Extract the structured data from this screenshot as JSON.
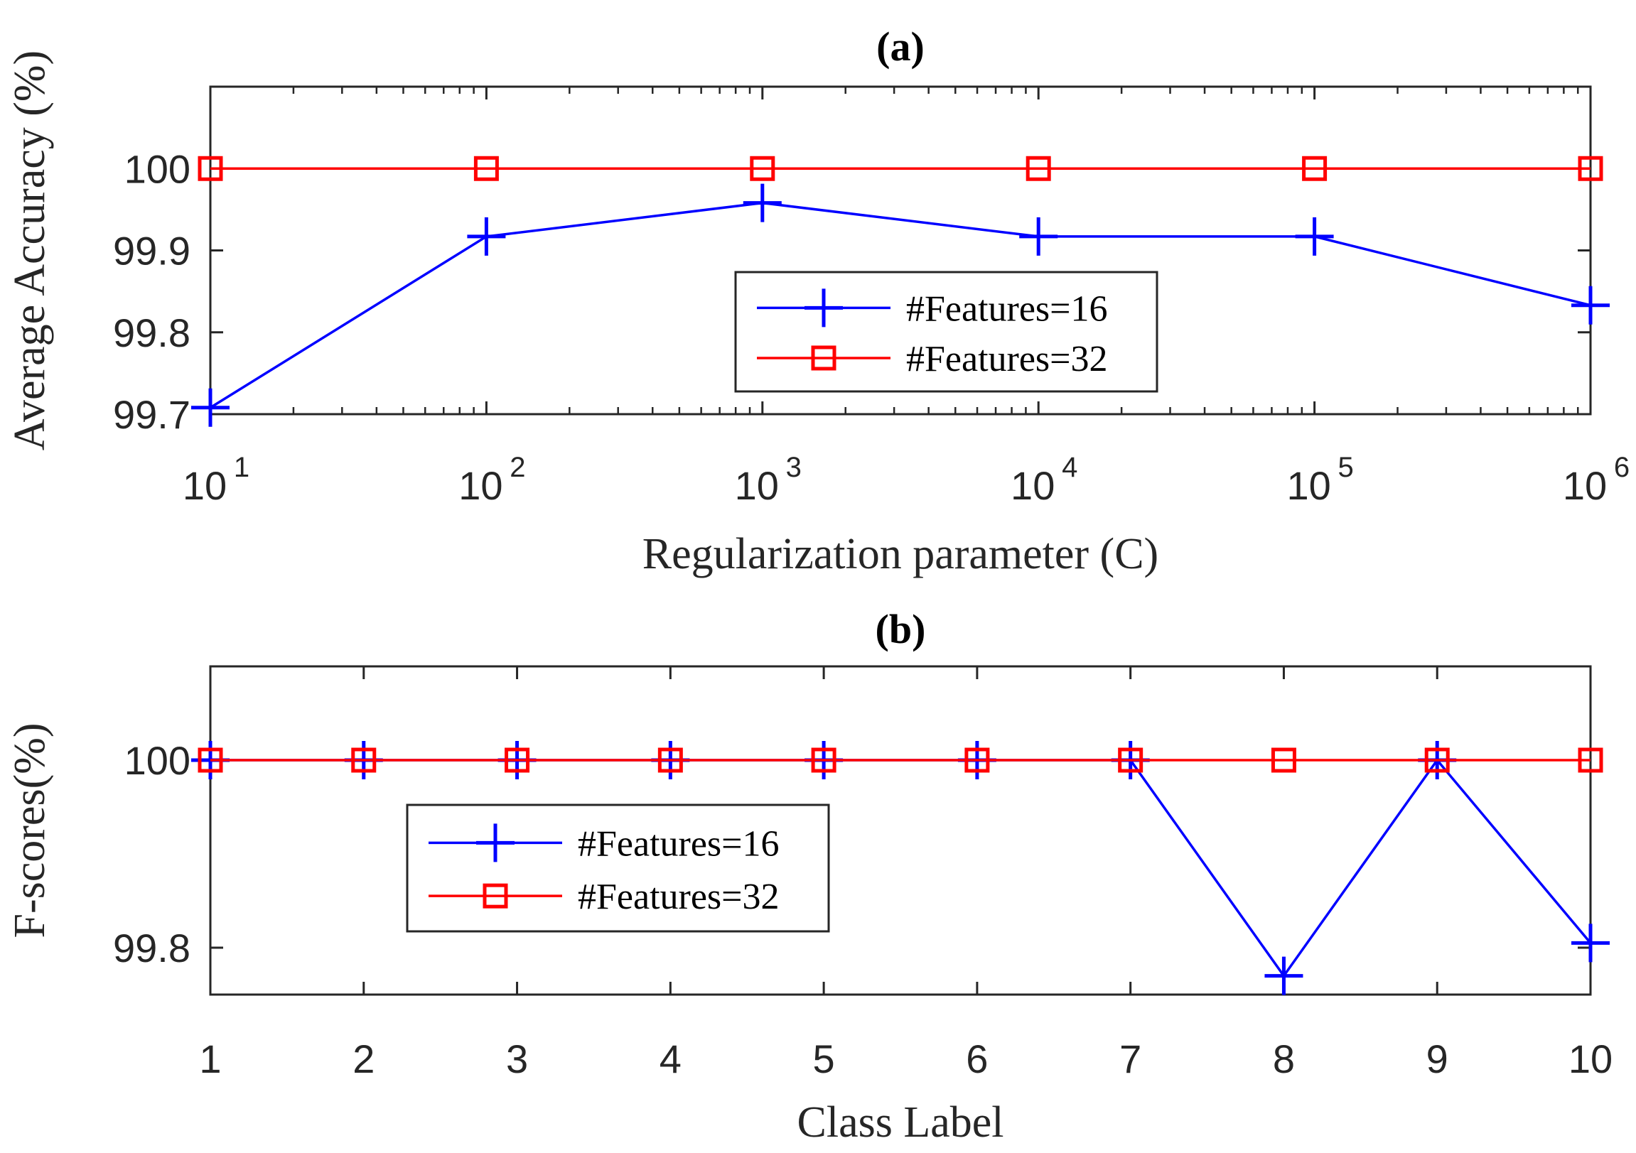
{
  "chart_data": [
    {
      "type": "line",
      "title": "(a)",
      "xlabel": "Regularization parameter (C)",
      "ylabel": "Average Accuracy (%)",
      "xscale": "log",
      "xlim": [
        10,
        1000000
      ],
      "ylim": [
        99.7,
        100.1
      ],
      "x": [
        10,
        100,
        1000,
        10000,
        100000,
        1000000
      ],
      "x_tick_labels": [
        {
          "base": "10",
          "exp": "1"
        },
        {
          "base": "10",
          "exp": "2"
        },
        {
          "base": "10",
          "exp": "3"
        },
        {
          "base": "10",
          "exp": "4"
        },
        {
          "base": "10",
          "exp": "5"
        },
        {
          "base": "10",
          "exp": "6"
        }
      ],
      "y_ticks": [
        99.7,
        99.8,
        99.9,
        100
      ],
      "y_tick_labels": [
        "99.7",
        "99.8",
        "99.9",
        "100"
      ],
      "series": [
        {
          "name": "#Features=16",
          "color": "#0000ff",
          "marker": "plus",
          "values": [
            99.708,
            99.917,
            99.958,
            99.917,
            99.917,
            99.833
          ]
        },
        {
          "name": "#Features=32",
          "color": "#ff0000",
          "marker": "square",
          "values": [
            100,
            100,
            100,
            100,
            100,
            100
          ]
        }
      ],
      "legend": "center-right"
    },
    {
      "type": "line",
      "title": "(b)",
      "xlabel": "Class Label",
      "ylabel": "F-scores(%)",
      "xlim": [
        1,
        10
      ],
      "ylim": [
        99.75,
        100.1
      ],
      "x": [
        1,
        2,
        3,
        4,
        5,
        6,
        7,
        8,
        9,
        10
      ],
      "x_tick_labels": [
        "1",
        "2",
        "3",
        "4",
        "5",
        "6",
        "7",
        "8",
        "9",
        "10"
      ],
      "y_ticks": [
        99.8,
        100
      ],
      "y_tick_labels": [
        "99.8",
        "100"
      ],
      "series": [
        {
          "name": "#Features=16",
          "color": "#0000ff",
          "marker": "plus",
          "values": [
            100,
            100,
            100,
            100,
            100,
            100,
            100,
            99.77,
            100,
            99.805
          ]
        },
        {
          "name": "#Features=32",
          "color": "#ff0000",
          "marker": "square",
          "values": [
            100,
            100,
            100,
            100,
            100,
            100,
            100,
            100,
            100,
            100
          ]
        }
      ],
      "legend": "center-left"
    }
  ]
}
